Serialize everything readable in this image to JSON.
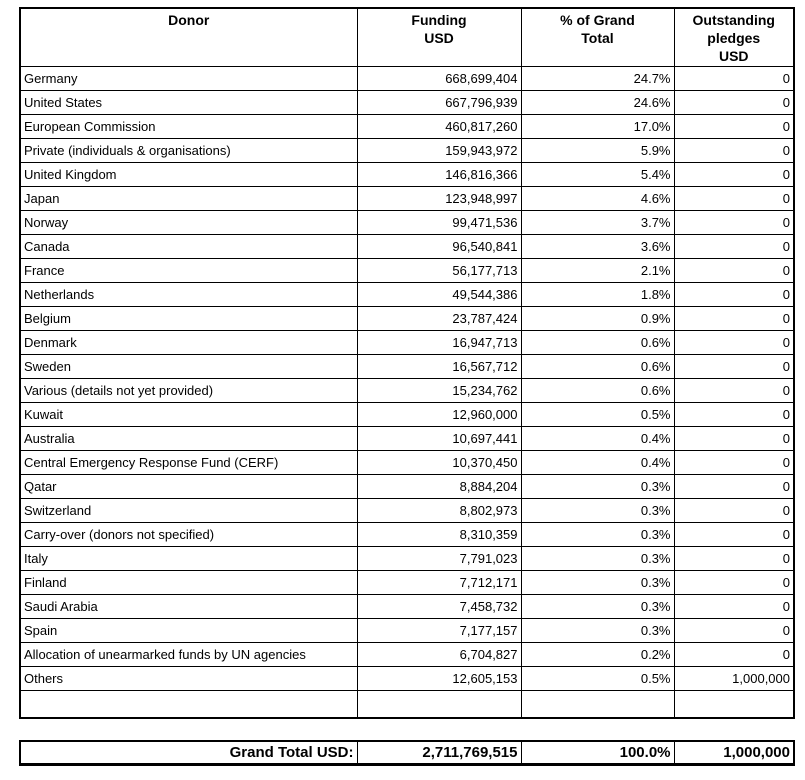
{
  "page": {
    "background": "#ffffff",
    "text_color": "#000000",
    "border_color": "#000000"
  },
  "table": {
    "columns": [
      {
        "name": "donor",
        "lines": [
          "Donor"
        ]
      },
      {
        "name": "funding-usd",
        "lines": [
          "Funding",
          "USD"
        ]
      },
      {
        "name": "percent-of-grand-total",
        "lines": [
          "% of Grand",
          "Total"
        ]
      },
      {
        "name": "outstanding-pledges-usd",
        "lines": [
          "Outstanding",
          "pledges",
          "USD"
        ]
      }
    ],
    "rows": [
      [
        "Germany",
        "668,699,404",
        "24.7%",
        "0"
      ],
      [
        "United States",
        "667,796,939",
        "24.6%",
        "0"
      ],
      [
        "European Commission",
        "460,817,260",
        "17.0%",
        "0"
      ],
      [
        "Private (individuals & organisations)",
        "159,943,972",
        "5.9%",
        "0"
      ],
      [
        "United Kingdom",
        "146,816,366",
        "5.4%",
        "0"
      ],
      [
        "Japan",
        "123,948,997",
        "4.6%",
        "0"
      ],
      [
        "Norway",
        "99,471,536",
        "3.7%",
        "0"
      ],
      [
        "Canada",
        "96,540,841",
        "3.6%",
        "0"
      ],
      [
        "France",
        "56,177,713",
        "2.1%",
        "0"
      ],
      [
        "Netherlands",
        "49,544,386",
        "1.8%",
        "0"
      ],
      [
        "Belgium",
        "23,787,424",
        "0.9%",
        "0"
      ],
      [
        "Denmark",
        "16,947,713",
        "0.6%",
        "0"
      ],
      [
        "Sweden",
        "16,567,712",
        "0.6%",
        "0"
      ],
      [
        "Various (details not yet provided)",
        "15,234,762",
        "0.6%",
        "0"
      ],
      [
        "Kuwait",
        "12,960,000",
        "0.5%",
        "0"
      ],
      [
        "Australia",
        "10,697,441",
        "0.4%",
        "0"
      ],
      [
        "Central Emergency Response Fund (CERF)",
        "10,370,450",
        "0.4%",
        "0"
      ],
      [
        "Qatar",
        "8,884,204",
        "0.3%",
        "0"
      ],
      [
        "Switzerland",
        "8,802,973",
        "0.3%",
        "0"
      ],
      [
        "Carry-over (donors not specified)",
        "8,310,359",
        "0.3%",
        "0"
      ],
      [
        "Italy",
        "7,791,023",
        "0.3%",
        "0"
      ],
      [
        "Finland",
        "7,712,171",
        "0.3%",
        "0"
      ],
      [
        "Saudi Arabia",
        "7,458,732",
        "0.3%",
        "0"
      ],
      [
        "Spain",
        "7,177,157",
        "0.3%",
        "0"
      ],
      [
        "Allocation of unearmarked funds by UN agencies",
        "6,704,827",
        "0.2%",
        "0"
      ],
      [
        "Others",
        "12,605,153",
        "0.5%",
        "1,000,000"
      ]
    ]
  },
  "grand_total": {
    "label": "Grand Total  USD:",
    "funding": "2,711,769,515",
    "percent": "100.0%",
    "outstanding": "1,000,000"
  }
}
